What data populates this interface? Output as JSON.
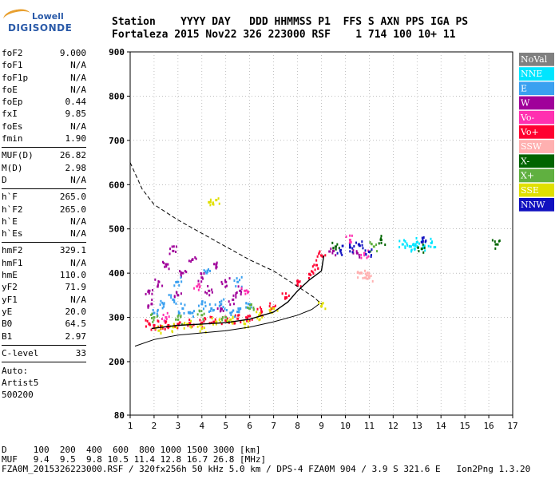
{
  "logo": {
    "line1": "Lowell",
    "line2": "DIGISONDE"
  },
  "header": {
    "line1": "Station    YYYY DAY   DDD HHMMSS P1  FFS S AXN PPS IGA PS",
    "line2": "Fortaleza 2015 Nov22 326 223000 RSF    1 714 100 10+ 11"
  },
  "params": {
    "group1": [
      {
        "label": "foF2",
        "value": "9.000"
      },
      {
        "label": "foF1",
        "value": "N/A"
      },
      {
        "label": "foF1p",
        "value": "N/A"
      },
      {
        "label": "foE",
        "value": "N/A"
      },
      {
        "label": "foEp",
        "value": "0.44"
      },
      {
        "label": "fxI",
        "value": "9.85"
      },
      {
        "label": "foEs",
        "value": "N/A"
      },
      {
        "label": "fmin",
        "value": "1.90"
      }
    ],
    "group2": [
      {
        "label": "MUF(D)",
        "value": "26.82"
      },
      {
        "label": "M(D)",
        "value": "2.98"
      },
      {
        "label": "D",
        "value": "N/A"
      }
    ],
    "group3": [
      {
        "label": "h`F",
        "value": "265.0"
      },
      {
        "label": "h`F2",
        "value": "265.0"
      },
      {
        "label": "h`E",
        "value": "N/A"
      },
      {
        "label": "h`Es",
        "value": "N/A"
      }
    ],
    "group4": [
      {
        "label": "hmF2",
        "value": "329.1"
      },
      {
        "label": "hmF1",
        "value": "N/A"
      },
      {
        "label": "hmE",
        "value": "110.0"
      },
      {
        "label": "yF2",
        "value": "71.9"
      },
      {
        "label": "yF1",
        "value": "N/A"
      },
      {
        "label": "yE",
        "value": "20.0"
      },
      {
        "label": "B0",
        "value": "64.5"
      },
      {
        "label": "B1",
        "value": "2.97"
      }
    ],
    "group5": [
      {
        "label": "C-level",
        "value": "33"
      }
    ],
    "auto": [
      "Auto:",
      "Artist5",
      "500200"
    ]
  },
  "legend": [
    {
      "label": "NoVal",
      "color": "#808080",
      "text_color": "#ffffff"
    },
    {
      "label": "NNE",
      "color": "#00e5ff",
      "text_color": "#ffffff"
    },
    {
      "label": "E",
      "color": "#3aa0f0",
      "text_color": "#ffffff"
    },
    {
      "label": "W",
      "color": "#a0009a",
      "text_color": "#ffffff"
    },
    {
      "label": "Vo-",
      "color": "#ff30b0",
      "text_color": "#ffffff"
    },
    {
      "label": "Vo+",
      "color": "#ff0030",
      "text_color": "#ffffff"
    },
    {
      "label": "SSW",
      "color": "#ffb0b0",
      "text_color": "#ffffff"
    },
    {
      "label": "X-",
      "color": "#006400",
      "text_color": "#ffffff"
    },
    {
      "label": "X+",
      "color": "#60b040",
      "text_color": "#ffffff"
    },
    {
      "label": "SSE",
      "color": "#e0e000",
      "text_color": "#ffffff"
    },
    {
      "label": "NNW",
      "color": "#1010c0",
      "text_color": "#ffffff"
    }
  ],
  "bottom": {
    "line1": "D     100  200  400  600  800 1000 1500 3000 [km]",
    "line2": "MUF   9.4  9.5  9.8 10.5 11.4 12.8 16.7 26.8 [MHz]",
    "line3": "FZA0M_2015326223000.RSF / 320fx256h 50 kHz 5.0 km / DPS-4 FZA0M 904 / 3.9 S 321.6 E   Ion2Png 1.3.20"
  },
  "chart_data": {
    "type": "scatter",
    "title": "",
    "xlabel": "",
    "ylabel": "",
    "xlim": [
      1,
      17
    ],
    "ylim": [
      80,
      900
    ],
    "xticks": [
      1,
      2,
      3,
      4,
      5,
      6,
      7,
      8,
      9,
      10,
      11,
      12,
      13,
      14,
      15,
      16,
      17
    ],
    "yticks": [
      80,
      200,
      300,
      400,
      500,
      600,
      700,
      800,
      900
    ],
    "grid": true,
    "legend_position": "right",
    "series": [
      {
        "name": "Vo+",
        "color": "#ff0030",
        "points": [
          [
            1.8,
            285
          ],
          [
            2.0,
            282
          ],
          [
            2.3,
            280
          ],
          [
            2.6,
            282
          ],
          [
            3.0,
            285
          ],
          [
            3.5,
            287
          ],
          [
            4.0,
            288
          ],
          [
            4.5,
            290
          ],
          [
            5.0,
            293
          ],
          [
            5.5,
            297
          ],
          [
            6.0,
            303
          ],
          [
            6.5,
            313
          ],
          [
            7.0,
            323
          ],
          [
            7.5,
            345
          ],
          [
            8.0,
            372
          ],
          [
            8.5,
            398
          ],
          [
            8.8,
            418
          ],
          [
            9.0,
            440
          ]
        ]
      },
      {
        "name": "W",
        "color": "#a0009a",
        "points": [
          [
            1.8,
            360
          ],
          [
            2.2,
            380
          ],
          [
            2.5,
            420
          ],
          [
            2.8,
            450
          ],
          [
            3.2,
            400
          ],
          [
            3.6,
            430
          ],
          [
            4.0,
            390
          ],
          [
            4.3,
            360
          ],
          [
            4.6,
            420
          ],
          [
            5.0,
            380
          ],
          [
            5.3,
            340
          ],
          [
            5.6,
            360
          ],
          [
            1.9,
            330
          ],
          [
            3.0,
            350
          ],
          [
            4.8,
            320
          ],
          [
            9.5,
            450
          ],
          [
            10.5,
            445
          ]
        ]
      },
      {
        "name": "E",
        "color": "#3aa0f0",
        "points": [
          [
            2.0,
            310
          ],
          [
            2.4,
            330
          ],
          [
            2.8,
            340
          ],
          [
            3.2,
            320
          ],
          [
            3.6,
            310
          ],
          [
            4.0,
            330
          ],
          [
            4.4,
            320
          ],
          [
            4.8,
            330
          ],
          [
            5.2,
            310
          ],
          [
            5.6,
            320
          ],
          [
            6.0,
            330
          ],
          [
            3.0,
            380
          ],
          [
            4.2,
            400
          ],
          [
            5.5,
            380
          ]
        ]
      },
      {
        "name": "NNE",
        "color": "#00e5ff",
        "points": [
          [
            12.4,
            465
          ],
          [
            12.7,
            460
          ],
          [
            13.0,
            470
          ],
          [
            13.3,
            462
          ],
          [
            13.6,
            468
          ],
          [
            12.9,
            455
          ]
        ]
      },
      {
        "name": "Vo-",
        "color": "#ff30b0",
        "points": [
          [
            2.5,
            300
          ],
          [
            3.8,
            370
          ],
          [
            5.8,
            360
          ],
          [
            10.2,
            475
          ],
          [
            10.8,
            445
          ]
        ]
      },
      {
        "name": "SSW",
        "color": "#ffb0b0",
        "points": [
          [
            10.6,
            400
          ],
          [
            10.9,
            395
          ],
          [
            11.0,
            390
          ]
        ]
      },
      {
        "name": "X-",
        "color": "#006400",
        "points": [
          [
            9.6,
            460
          ],
          [
            11.5,
            475
          ],
          [
            13.2,
            455
          ],
          [
            16.3,
            465
          ]
        ]
      },
      {
        "name": "X+",
        "color": "#60b040",
        "points": [
          [
            2.0,
            300
          ],
          [
            3.0,
            295
          ],
          [
            4.0,
            305
          ],
          [
            5.0,
            300
          ],
          [
            6.0,
            320
          ],
          [
            11.2,
            460
          ]
        ]
      },
      {
        "name": "SSE",
        "color": "#e0e000",
        "points": [
          [
            2.2,
            270
          ],
          [
            2.8,
            278
          ],
          [
            3.4,
            285
          ],
          [
            4.0,
            275
          ],
          [
            4.6,
            290
          ],
          [
            5.2,
            295
          ],
          [
            5.8,
            285
          ],
          [
            6.4,
            305
          ],
          [
            7.0,
            320
          ],
          [
            9.0,
            325
          ],
          [
            4.3,
            560
          ],
          [
            4.6,
            565
          ]
        ]
      },
      {
        "name": "NNW",
        "color": "#1010c0",
        "points": [
          [
            9.8,
            452
          ],
          [
            10.2,
            458
          ],
          [
            10.6,
            462
          ],
          [
            11.0,
            448
          ],
          [
            13.2,
            470
          ]
        ]
      }
    ],
    "traces": [
      {
        "style": "solid",
        "points": [
          [
            1.2,
            235
          ],
          [
            2,
            250
          ],
          [
            3,
            260
          ],
          [
            4,
            265
          ],
          [
            5,
            270
          ],
          [
            6,
            278
          ],
          [
            7,
            290
          ],
          [
            8,
            305
          ],
          [
            8.6,
            318
          ],
          [
            8.9,
            330
          ]
        ]
      },
      {
        "style": "dashed",
        "points": [
          [
            1,
            650
          ],
          [
            1.5,
            590
          ],
          [
            2,
            555
          ],
          [
            3,
            520
          ],
          [
            4,
            490
          ],
          [
            5,
            460
          ],
          [
            6,
            430
          ],
          [
            7,
            405
          ],
          [
            8,
            370
          ],
          [
            8.7,
            345
          ],
          [
            9,
            330
          ]
        ]
      },
      {
        "style": "solid-thick",
        "points": [
          [
            1.9,
            275
          ],
          [
            3,
            282
          ],
          [
            4,
            285
          ],
          [
            5,
            288
          ],
          [
            6,
            296
          ],
          [
            7,
            312
          ],
          [
            7.6,
            335
          ],
          [
            8,
            360
          ],
          [
            8.5,
            385
          ],
          [
            9,
            405
          ],
          [
            9.1,
            440
          ]
        ]
      }
    ]
  }
}
